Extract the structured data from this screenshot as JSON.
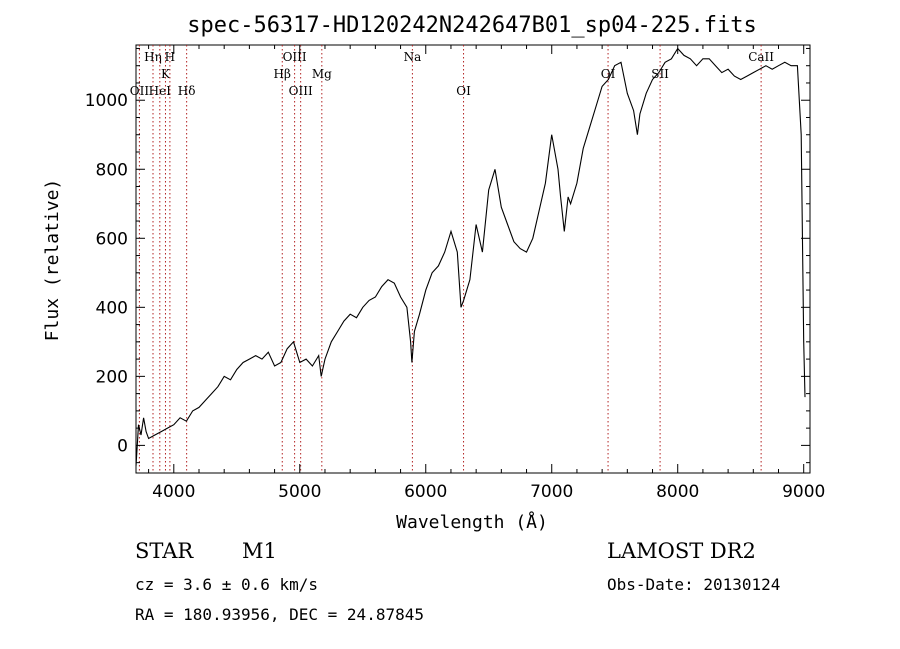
{
  "chart_data": {
    "type": "line",
    "title": "spec-56317-HD120242N242647B01_sp04-225.fits",
    "xlabel": "Wavelength (Å)",
    "ylabel": "Flux (relative)",
    "xlim": [
      3700,
      9050
    ],
    "ylim": [
      -80,
      1160
    ],
    "xticks": [
      4000,
      5000,
      6000,
      7000,
      8000,
      9000
    ],
    "yticks": [
      0,
      200,
      400,
      600,
      800,
      1000
    ],
    "grid": false,
    "series": [
      {
        "x": [
          3700,
          3720,
          3740,
          3760,
          3780,
          3800,
          3850,
          3900,
          3950,
          4000,
          4050,
          4100,
          4150,
          4200,
          4250,
          4300,
          4350,
          4400,
          4450,
          4500,
          4550,
          4600,
          4650,
          4700,
          4750,
          4800,
          4850,
          4900,
          4950,
          5000,
          5050,
          5100,
          5150,
          5170,
          5200,
          5250,
          5300,
          5350,
          5400,
          5450,
          5500,
          5550,
          5600,
          5650,
          5700,
          5750,
          5800,
          5850,
          5880,
          5890,
          5910,
          5950,
          6000,
          6050,
          6100,
          6150,
          6200,
          6250,
          6280,
          6300,
          6350,
          6400,
          6450,
          6500,
          6550,
          6600,
          6650,
          6700,
          6750,
          6800,
          6850,
          6900,
          6950,
          7000,
          7050,
          7070,
          7100,
          7130,
          7150,
          7200,
          7250,
          7300,
          7350,
          7400,
          7450,
          7500,
          7550,
          7600,
          7650,
          7680,
          7700,
          7750,
          7800,
          7850,
          7900,
          7950,
          8000,
          8050,
          8100,
          8150,
          8200,
          8250,
          8300,
          8350,
          8400,
          8450,
          8500,
          8550,
          8600,
          8650,
          8700,
          8750,
          8800,
          8850,
          8900,
          8950,
          8980,
          9000,
          9010
        ],
        "y": [
          -60,
          60,
          30,
          80,
          40,
          20,
          30,
          40,
          50,
          60,
          80,
          70,
          100,
          110,
          130,
          150,
          170,
          200,
          190,
          220,
          240,
          250,
          260,
          250,
          270,
          230,
          240,
          280,
          300,
          240,
          250,
          230,
          260,
          200,
          250,
          300,
          330,
          360,
          380,
          370,
          400,
          420,
          430,
          460,
          480,
          470,
          430,
          400,
          300,
          240,
          330,
          380,
          450,
          500,
          520,
          560,
          620,
          560,
          400,
          420,
          480,
          640,
          560,
          740,
          800,
          690,
          640,
          590,
          570,
          560,
          600,
          680,
          760,
          900,
          800,
          720,
          620,
          720,
          700,
          760,
          860,
          920,
          980,
          1040,
          1060,
          1100,
          1110,
          1020,
          970,
          900,
          960,
          1020,
          1060,
          1080,
          1110,
          1120,
          1150,
          1130,
          1120,
          1100,
          1120,
          1120,
          1100,
          1080,
          1090,
          1070,
          1060,
          1070,
          1080,
          1090,
          1100,
          1090,
          1100,
          1110,
          1100,
          1100,
          900,
          300,
          140
        ]
      }
    ],
    "line_labels": [
      {
        "label": "OII",
        "x": 3727,
        "row": 3
      },
      {
        "label": "Hη",
        "x": 3835,
        "row": 1
      },
      {
        "label": "HeI",
        "x": 3889,
        "row": 3
      },
      {
        "label": "K",
        "x": 3934,
        "row": 2
      },
      {
        "label": "H",
        "x": 3969,
        "row": 1
      },
      {
        "label": "Hδ",
        "x": 4102,
        "row": 3
      },
      {
        "label": "Hβ",
        "x": 4861,
        "row": 2
      },
      {
        "label": "OIII",
        "x": 4959,
        "row": 1
      },
      {
        "label": "OIII",
        "x": 5007,
        "row": 3
      },
      {
        "label": "Mg",
        "x": 5175,
        "row": 2
      },
      {
        "label": "Na",
        "x": 5894,
        "row": 1
      },
      {
        "label": "OI",
        "x": 6300,
        "row": 3
      },
      {
        "label": "OI",
        "x": 7447,
        "row": 2
      },
      {
        "label": "SII",
        "x": 7860,
        "row": 2
      },
      {
        "label": "CaII",
        "x": 8662,
        "row": 1
      }
    ]
  },
  "info": {
    "object_class": "STAR",
    "subclass": "M1",
    "survey": "LAMOST DR2",
    "cz": "cz = 3.6 ± 0.6 km/s",
    "obs_date": "Obs-Date: 20130124",
    "coords": "RA = 180.93956, DEC =  24.87845"
  }
}
